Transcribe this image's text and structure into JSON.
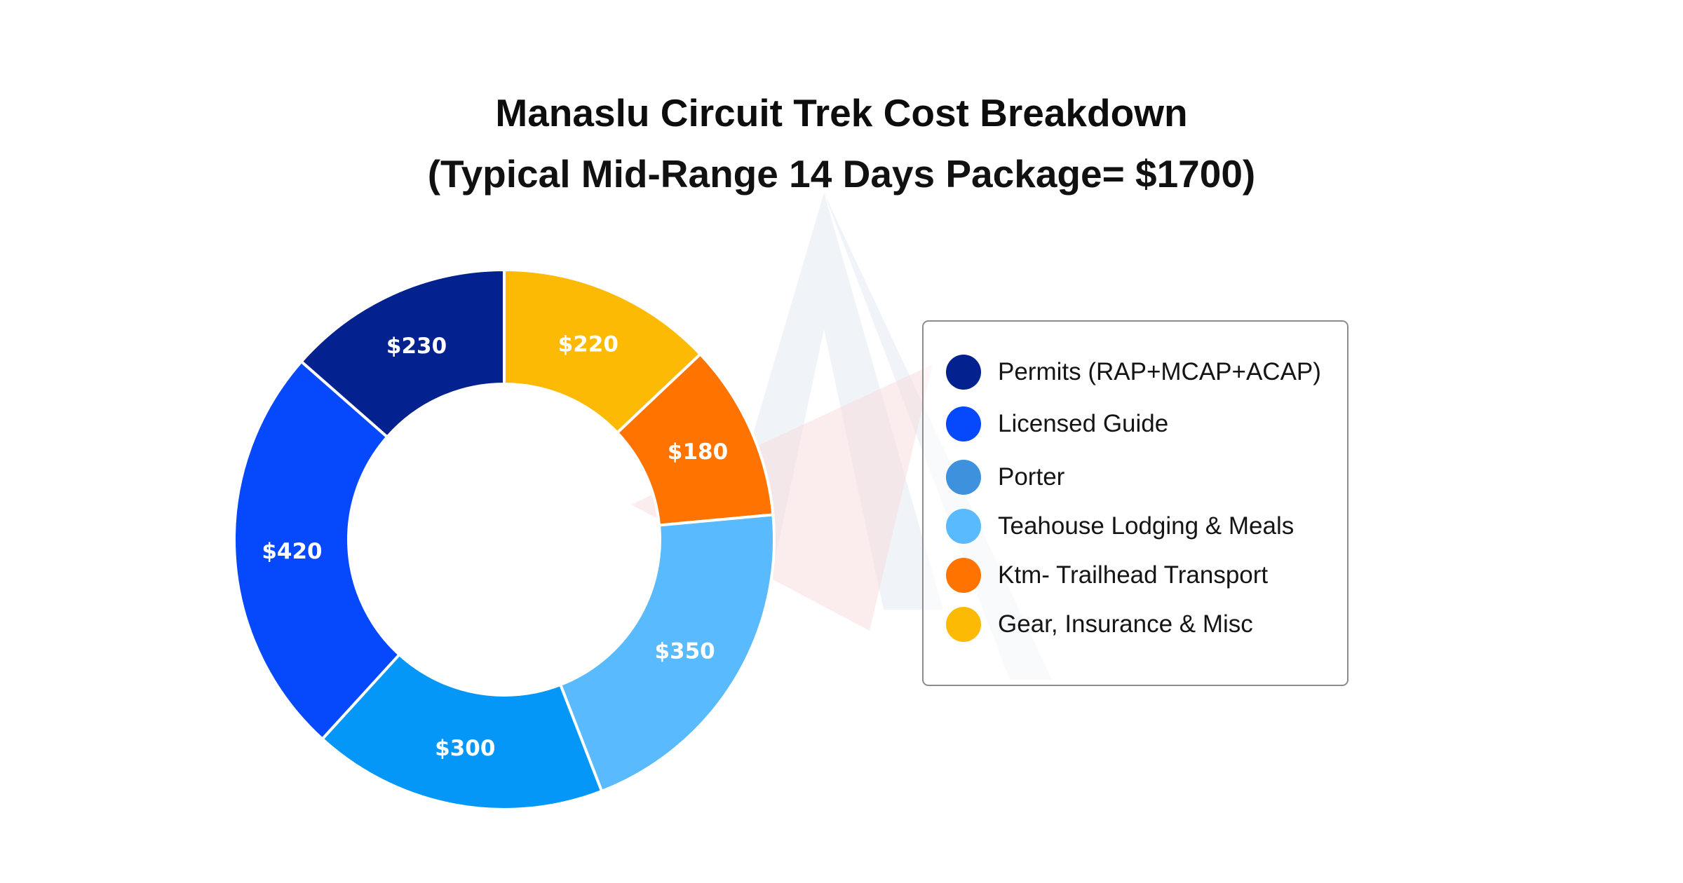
{
  "chart_data": {
    "type": "pie",
    "title": "Manaslu Circuit Trek Cost Breakdown",
    "subtitle": "(Typical Mid-Range 14 Days Package= $1700)",
    "slices": [
      {
        "name": "Gear, Insurance & Misc",
        "value": 220,
        "label": "$220",
        "color": "#FCBA05"
      },
      {
        "name": "Ktm- Trailhead Transport",
        "value": 180,
        "label": "$180",
        "color": "#FF7400"
      },
      {
        "name": "Teahouse Lodging & Meals",
        "value": 350,
        "label": "$350",
        "color": "#59BAFD"
      },
      {
        "name": "Porter",
        "value": 300,
        "label": "$300",
        "color": "#0497F7"
      },
      {
        "name": "Licensed Guide",
        "value": 420,
        "label": "$420",
        "color": "#0649FC"
      },
      {
        "name": "Permits (RAP+MCAP+ACAP)",
        "value": 230,
        "label": "$230",
        "color": "#03218F"
      }
    ],
    "legend": [
      {
        "label": "Permits (RAP+MCAP+ACAP)",
        "color": "#03218F"
      },
      {
        "label": "Licensed Guide",
        "color": "#0649FC"
      },
      {
        "label": "Porter",
        "color": "#3E92DD"
      },
      {
        "label": "Teahouse Lodging & Meals",
        "color": "#59BAFD"
      },
      {
        "label": "Ktm- Trailhead Transport",
        "color": "#FF7400"
      },
      {
        "label": "Gear, Insurance & Misc",
        "color": "#FCBA05"
      }
    ],
    "legend_placement": "right",
    "donut": true
  }
}
